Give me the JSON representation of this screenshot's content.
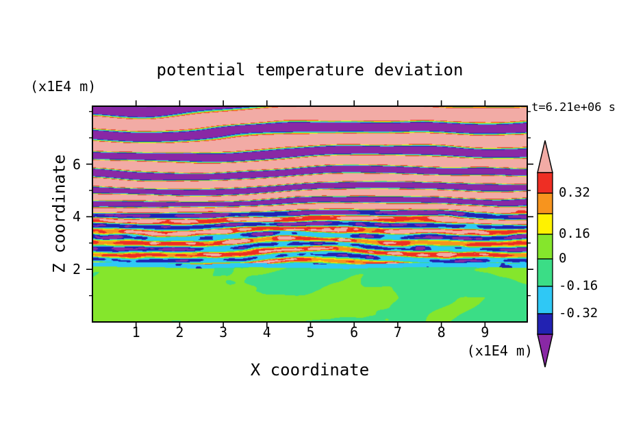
{
  "figure": {
    "background": "#FFFFFF",
    "text_color": "#000000"
  },
  "chart_data": {
    "type": "heatmap",
    "title": "potential temperature deviation",
    "time_label": "t=6.21e+06 s",
    "xlabel": "X coordinate",
    "zlabel": "Z coordinate",
    "x_unit_label": "(x1E4 m)",
    "z_unit_label": "(x1E4 m)",
    "x_ticks": [
      "1",
      "2",
      "3",
      "4",
      "5",
      "6",
      "7",
      "8",
      "9"
    ],
    "z_ticks": [
      "2",
      "4",
      "6"
    ],
    "z_minor_ticks": [
      "1",
      "3",
      "5",
      "7",
      "8"
    ],
    "x_range": [
      0,
      9.97
    ],
    "z_range": [
      0,
      8.2
    ],
    "levels": [
      0.4,
      0.32,
      0.24,
      0.16,
      0,
      -0.16,
      -0.32,
      -0.4
    ],
    "palette": {
      "over": "#F2ABA5",
      "bins": [
        "#EE2E24",
        "#F7941E",
        "#FFF200",
        "#85E62C",
        "#3BDD86",
        "#2FC8F5",
        "#2222B2"
      ],
      "under": "#8928A5"
    },
    "colorbar": {
      "labels": [
        "0.32",
        "0.16",
        "0",
        "-0.16",
        "-0.32"
      ],
      "label_level_indices": [
        1,
        3,
        4,
        5,
        6
      ]
    },
    "features": {
      "mixed_layer_top_z": 2.1,
      "upper_region": "stratified wavy layers alternating between deviations above 0.4 (pink) and below -0.4 (purple); thin mixing filaments with intermediate values (red, orange, yellow, cyan, blue) concentrated between z=2 and z=4",
      "lower_region": "convective mixed layer below z=2.1 with small deviations near zero: green background (slightly negative) with yellow-green swirling plumes (slightly positive)"
    }
  }
}
